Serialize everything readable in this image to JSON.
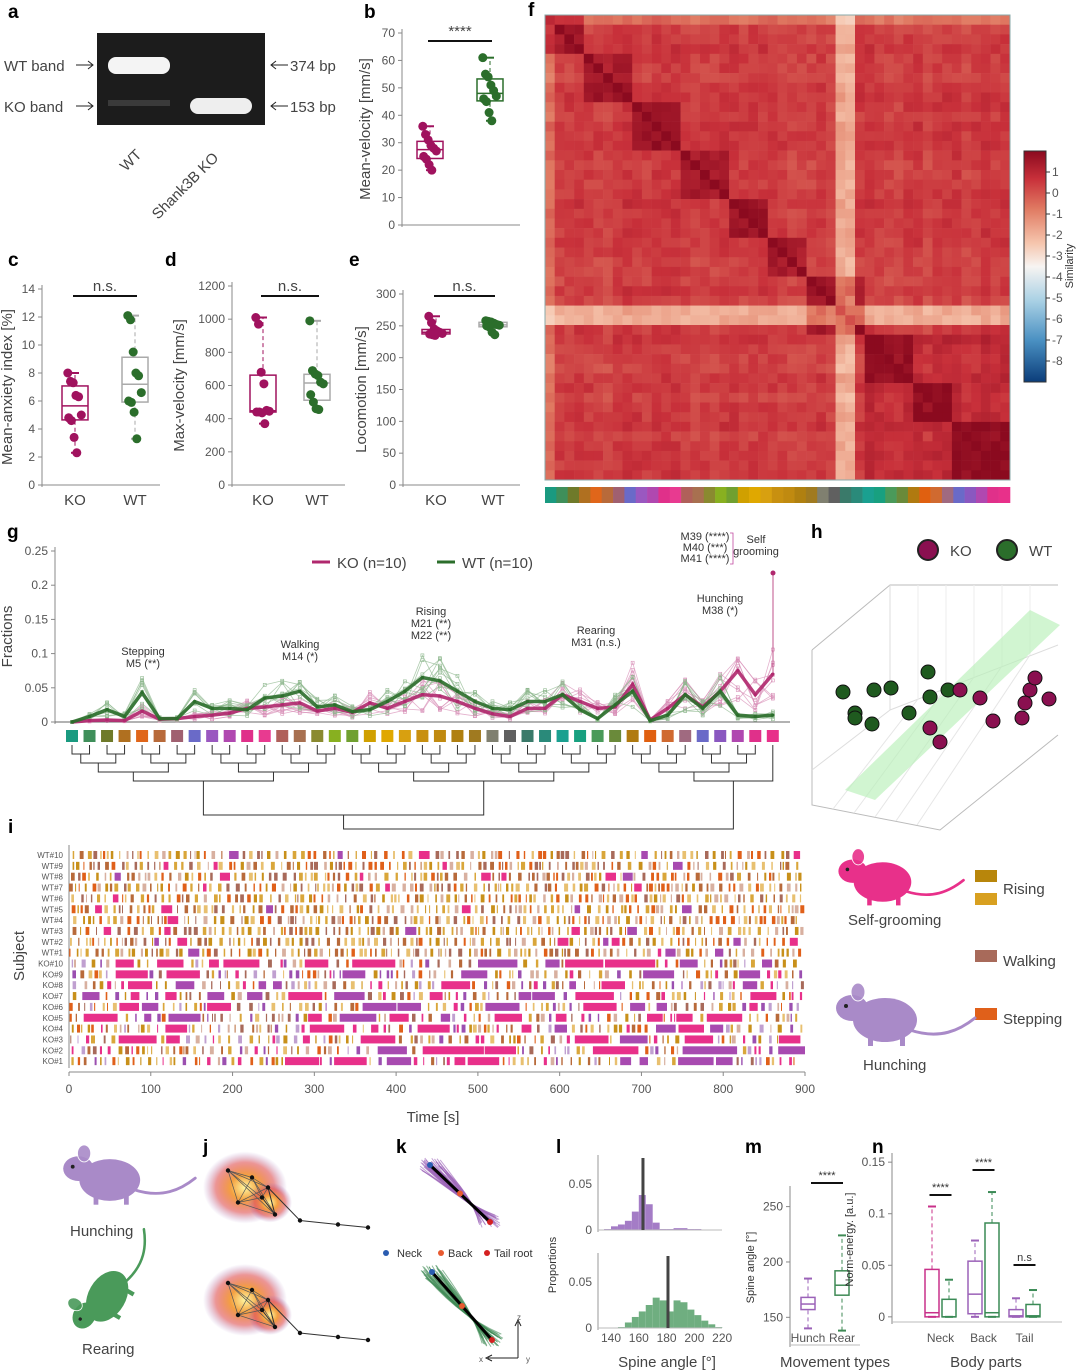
{
  "panel_labels": {
    "a": "a",
    "b": "b",
    "c": "c",
    "d": "d",
    "e": "e",
    "f": "f",
    "g": "g",
    "h": "h",
    "i": "i",
    "j": "j",
    "k": "k",
    "l": "l",
    "m": "m",
    "n": "n"
  },
  "gel": {
    "wt_band": "WT band",
    "ko_band": "KO band",
    "bp_374": "374 bp",
    "bp_153": "153 bp",
    "lane_wt": "WT",
    "lane_ko": "Shank3B KO"
  },
  "colors": {
    "KO": "#a0125e",
    "WT": "#2b6e2b",
    "hunch": "#9b62b8",
    "rear": "#3f8a55",
    "ko_pink": "#d0418f"
  },
  "illustrations": {
    "self_grooming": "Self-grooming",
    "hunching_right": "Hunching",
    "hunching_left": "Hunching",
    "rearing": "Rearing",
    "k_legend": [
      "Neck",
      "Back",
      "Tail root"
    ],
    "k_axes": [
      "z",
      "x",
      "y"
    ]
  },
  "chart_data": [
    {
      "panel": "b",
      "type": "box",
      "ylabel": "Mean-velocity [mm/s]",
      "ylim": [
        0,
        70
      ],
      "yticks": [
        0,
        10,
        20,
        30,
        40,
        50,
        60,
        70
      ],
      "significance": "****",
      "groups": [
        {
          "name": "KO",
          "points": [
            36,
            33,
            31,
            29,
            28,
            27,
            25,
            24,
            22,
            20
          ]
        },
        {
          "name": "WT",
          "points": [
            61,
            55,
            54,
            51,
            49,
            47,
            46,
            45,
            41,
            38
          ]
        }
      ]
    },
    {
      "panel": "c",
      "type": "box",
      "ylabel": "Mean-anxiety index [%]",
      "ylim": [
        0,
        14
      ],
      "yticks": [
        0,
        2,
        4,
        6,
        8,
        10,
        12,
        14
      ],
      "categories": [
        "KO",
        "WT"
      ],
      "significance": "n.s.",
      "groups": [
        {
          "name": "KO",
          "points": [
            8.0,
            7.4,
            7.3,
            6.4,
            6.3,
            5.0,
            4.8,
            4.6,
            3.4,
            2.3
          ]
        },
        {
          "name": "WT",
          "points": [
            12.1,
            11.8,
            9.5,
            8.0,
            7.8,
            6.6,
            6.0,
            5.9,
            5.2,
            3.3
          ]
        }
      ]
    },
    {
      "panel": "d",
      "type": "box",
      "ylabel": "Max-velocity [mm/s]",
      "ylim": [
        0,
        1200
      ],
      "yticks": [
        0,
        200,
        400,
        600,
        800,
        1000,
        1200
      ],
      "categories": [
        "KO",
        "WT"
      ],
      "significance": "n.s.",
      "groups": [
        {
          "name": "KO",
          "points": [
            1010,
            970,
            680,
            610,
            450,
            445,
            440,
            440,
            435,
            370
          ]
        },
        {
          "name": "WT",
          "points": [
            990,
            690,
            670,
            660,
            620,
            610,
            545,
            500,
            460,
            455
          ]
        }
      ]
    },
    {
      "panel": "e",
      "type": "box",
      "ylabel": "Locomotion [mm/s]",
      "ylim": [
        0,
        300
      ],
      "yticks": [
        0,
        50,
        100,
        150,
        200,
        250,
        300
      ],
      "categories": [
        "KO",
        "WT"
      ],
      "significance": "n.s.",
      "groups": [
        {
          "name": "KO",
          "points": [
            265,
            255,
            245,
            242,
            240,
            238,
            237,
            236,
            235,
            240
          ]
        },
        {
          "name": "WT",
          "points": [
            258,
            257,
            256,
            254,
            252,
            251,
            250,
            248,
            240,
            236
          ]
        }
      ]
    },
    {
      "panel": "f",
      "type": "heatmap",
      "colorbar_label": "Similarity",
      "colorbar_ticks": [
        1,
        0,
        -1,
        -2,
        -3,
        -4,
        -5,
        -6,
        -7,
        -8
      ],
      "range": [
        -8,
        1
      ]
    },
    {
      "panel": "g",
      "type": "line",
      "ylabel": "Fractions",
      "ylim": [
        0,
        0.25
      ],
      "yticks": [
        0,
        0.05,
        0.1,
        0.15,
        0.2,
        0.25
      ],
      "legend": [
        "KO (n=10)",
        "WT (n=10)"
      ],
      "legend_position": "top",
      "module_colors": [
        "#1a9a80",
        "#3f8f5a",
        "#6f7a2a",
        "#b07020",
        "#e0661a",
        "#b86a3a",
        "#a06070",
        "#6a6ac8",
        "#9a58c0",
        "#b048b0",
        "#e0308a",
        "#e83a90",
        "#b0605a",
        "#a87050",
        "#8a8a30",
        "#88b020",
        "#70a030",
        "#d0a000",
        "#e0a800",
        "#d8a010",
        "#c89010",
        "#c08a10",
        "#b08010",
        "#a07a20",
        "#808070",
        "#606060",
        "#3a7a6a",
        "#2a8a7a",
        "#1aa090",
        "#18a080",
        "#4a9a5a",
        "#6a8a3a",
        "#b07a10",
        "#e06010",
        "#d06a30",
        "#a06a80",
        "#6a6ac8",
        "#8a58c0",
        "#b048b0",
        "#e0308a",
        "#e8308a"
      ],
      "series": [
        {
          "name": "KO (n=10)",
          "values": [
            0,
            0.002,
            0.003,
            0.002,
            0.016,
            0.004,
            0.005,
            0.008,
            0.01,
            0.013,
            0.02,
            0.022,
            0.025,
            0.028,
            0.016,
            0.02,
            0.014,
            0.028,
            0.02,
            0.03,
            0.04,
            0.038,
            0.03,
            0.02,
            0.012,
            0.008,
            0.02,
            0.02,
            0.04,
            0.03,
            0.02,
            0.022,
            0.055,
            0.003,
            0.02,
            0.04,
            0.022,
            0.045,
            0.075,
            0.04,
            0.07
          ]
        },
        {
          "name": "WT (n=10)",
          "values": [
            0,
            0.008,
            0.018,
            0.008,
            0.043,
            0.005,
            0.005,
            0.03,
            0.02,
            0.02,
            0.018,
            0.035,
            0.038,
            0.045,
            0.022,
            0.025,
            0.015,
            0.018,
            0.03,
            0.045,
            0.065,
            0.06,
            0.045,
            0.03,
            0.02,
            0.018,
            0.03,
            0.03,
            0.04,
            0.018,
            0.005,
            0.025,
            0.045,
            0.002,
            0.01,
            0.04,
            0.02,
            0.045,
            0.01,
            0.008,
            0.01
          ]
        }
      ],
      "annotations": [
        {
          "label": "Stepping",
          "modules": [
            {
              "text": "M5 (**)",
              "color": "#e0661a"
            }
          ]
        },
        {
          "label": "Walking",
          "modules": [
            {
              "text": "M14 (*)",
              "color": "#a87050"
            }
          ]
        },
        {
          "label": "Rising",
          "modules": [
            {
              "text": "M21 (**)",
              "color": "#d0a000"
            },
            {
              "text": "M22 (**)",
              "color": "#b08a10"
            }
          ]
        },
        {
          "label": "Rearing",
          "modules": [
            {
              "text": "M31 (n.s.)",
              "color": "#3a8a6a"
            }
          ]
        },
        {
          "label": "Hunching",
          "modules": [
            {
              "text": "M38 (*)",
              "color": "#8a6ac0"
            }
          ]
        },
        {
          "label": "Self grooming",
          "label_lines": [
            "Self",
            "grooming"
          ],
          "modules": [
            {
              "text": "M39 (****)",
              "color": "#c048a0"
            },
            {
              "text": "M40 (***)",
              "color": "#d83a90"
            },
            {
              "text": "M41 (****)",
              "color": "#e8308a"
            }
          ]
        }
      ]
    },
    {
      "panel": "h",
      "type": "scatter",
      "legend": [
        "KO",
        "WT"
      ],
      "legend_position": "top"
    },
    {
      "panel": "i",
      "type": "ethogram",
      "xlabel": "Time [s]",
      "ylabel": "Subject",
      "xlim": [
        0,
        900
      ],
      "xticks": [
        0,
        100,
        200,
        300,
        400,
        500,
        600,
        700,
        800,
        900
      ],
      "subjects": [
        "WT#10",
        "WT#9",
        "WT#8",
        "WT#7",
        "WT#6",
        "WT#5",
        "WT#4",
        "WT#3",
        "WT#2",
        "WT#1",
        "KO#10",
        "KO#9",
        "KO#8",
        "KO#7",
        "KO#6",
        "KO#5",
        "KO#4",
        "KO#3",
        "KO#2",
        "KO#1"
      ],
      "legend": [
        {
          "label": "Rising",
          "colors": [
            "#b8860b",
            "#d8a020"
          ]
        },
        {
          "label": "Walking",
          "colors": [
            "#a86a5a"
          ]
        },
        {
          "label": "Stepping",
          "colors": [
            "#e0601a"
          ]
        }
      ]
    },
    {
      "panel": "l",
      "type": "bar",
      "xlabel": "Spine angle [°]",
      "ylabel": "Proportions",
      "xticks": [
        140,
        160,
        180,
        200,
        220
      ],
      "yticks": [
        0,
        0.05
      ],
      "xlim": [
        130,
        222
      ],
      "bin_starts": [
        130,
        135,
        140,
        145,
        150,
        155,
        160,
        165,
        170,
        175,
        180,
        185,
        190,
        195,
        200,
        205,
        210,
        215
      ],
      "series": [
        {
          "name": "Hunch",
          "mean": 163,
          "values": [
            0,
            0.001,
            0.004,
            0.006,
            0.01,
            0.02,
            0.038,
            0.028,
            0.008,
            0.001,
            0.001,
            0.002,
            0.002,
            0.001,
            0.001,
            0,
            0,
            0
          ]
        },
        {
          "name": "Rear",
          "mean": 181,
          "values": [
            0,
            0,
            0,
            0.001,
            0.006,
            0.012,
            0.018,
            0.025,
            0.033,
            0.03,
            0.018,
            0.03,
            0.028,
            0.02,
            0.014,
            0.008,
            0.004,
            0.001
          ]
        }
      ]
    },
    {
      "panel": "m",
      "type": "box",
      "xlabel": "Movement types",
      "ylabel": "Spine angle [°]",
      "yticks": [
        150,
        200,
        250
      ],
      "ylim": [
        125,
        265
      ],
      "significance": "****",
      "groups": [
        {
          "name": "Hunch",
          "whisker_low": 140,
          "q1": 157,
          "median": 162,
          "q3": 168,
          "whisker_high": 185
        },
        {
          "name": "Rear",
          "whisker_low": 138,
          "q1": 170,
          "median": 179,
          "q3": 192,
          "whisker_high": 224
        }
      ]
    },
    {
      "panel": "n",
      "type": "box",
      "xlabel": "Body parts",
      "ylabel": "Norm-energy. [a.u.]",
      "yticks": [
        0,
        0.05,
        0.1,
        0.15
      ],
      "ylim": [
        -0.005,
        0.155
      ],
      "categories": [
        "Neck",
        "Back",
        "Tail"
      ],
      "significance": [
        "****",
        "****",
        "n.s"
      ],
      "groups": [
        {
          "category": "Neck",
          "whisker_low": 0,
          "q1": 0,
          "median": 0.004,
          "q3": 0.046,
          "whisker_high": 0.107,
          "color": "#c8308a"
        },
        {
          "category": "Neck",
          "whisker_low": 0,
          "q1": 0,
          "median": 0,
          "q3": 0.017,
          "whisker_high": 0.036,
          "color": "#3a8a55"
        },
        {
          "category": "Back",
          "whisker_low": 0,
          "q1": 0.003,
          "median": 0.022,
          "q3": 0.054,
          "whisker_high": 0.074,
          "color": "#9b62b8"
        },
        {
          "category": "Back",
          "whisker_low": 0,
          "q1": 0,
          "median": 0.004,
          "q3": 0.091,
          "whisker_high": 0.121,
          "color": "#3a8a55"
        },
        {
          "category": "Tail",
          "whisker_low": 0,
          "q1": 0,
          "median": 0.001,
          "q3": 0.007,
          "whisker_high": 0.018,
          "color": "#9b62b8"
        },
        {
          "category": "Tail",
          "whisker_low": 0,
          "q1": 0,
          "median": 0.001,
          "q3": 0.012,
          "whisker_high": 0.026,
          "color": "#3a8a55"
        }
      ]
    }
  ]
}
